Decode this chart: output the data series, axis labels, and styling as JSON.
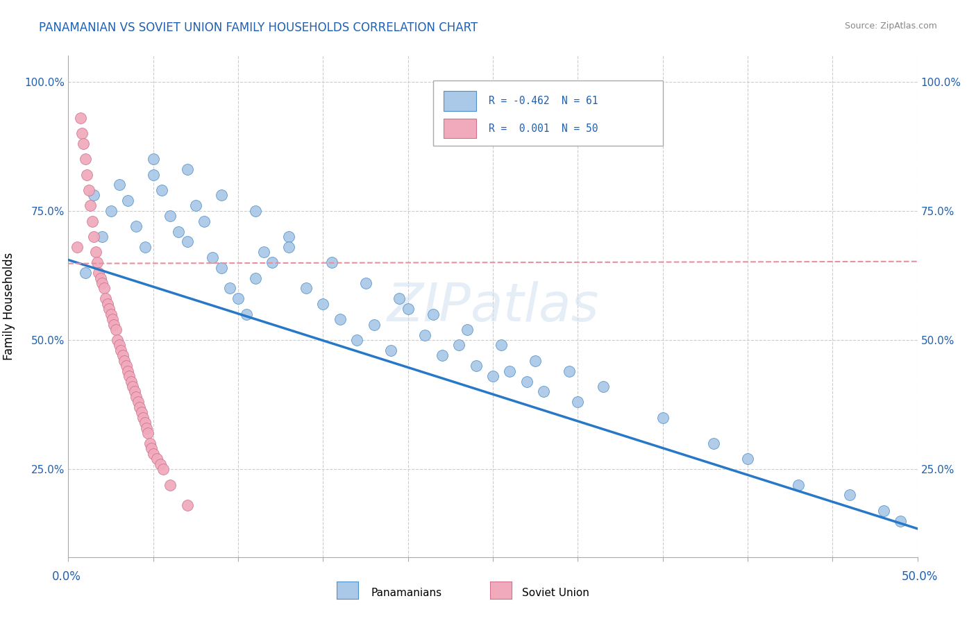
{
  "title": "PANAMANIAN VS SOVIET UNION FAMILY HOUSEHOLDS CORRELATION CHART",
  "source_text": "Source: ZipAtlas.com",
  "ylabel": "Family Households",
  "xlim": [
    0.0,
    0.5
  ],
  "ylim": [
    0.08,
    1.05
  ],
  "blue_R": -0.462,
  "blue_N": 61,
  "pink_R": 0.001,
  "pink_N": 50,
  "blue_color": "#aac8e8",
  "pink_color": "#f0aabb",
  "blue_edge_color": "#5090c8",
  "pink_edge_color": "#d07090",
  "blue_line_color": "#2878c8",
  "pink_line_color": "#e890a0",
  "background_color": "#ffffff",
  "grid_color": "#cccccc",
  "text_color": "#2060b0",
  "legend_label_blue": "Panamanians",
  "legend_label_pink": "Soviet Union",
  "yticks": [
    0.25,
    0.5,
    0.75,
    1.0
  ],
  "ytick_labels": [
    "25.0%",
    "50.0%",
    "75.0%",
    "100.0%"
  ],
  "blue_scatter_x": [
    0.01,
    0.02,
    0.015,
    0.025,
    0.03,
    0.035,
    0.04,
    0.045,
    0.05,
    0.055,
    0.06,
    0.065,
    0.07,
    0.075,
    0.08,
    0.085,
    0.09,
    0.095,
    0.1,
    0.105,
    0.11,
    0.115,
    0.12,
    0.13,
    0.14,
    0.15,
    0.16,
    0.17,
    0.18,
    0.19,
    0.2,
    0.21,
    0.22,
    0.23,
    0.24,
    0.25,
    0.26,
    0.27,
    0.28,
    0.3,
    0.05,
    0.07,
    0.09,
    0.11,
    0.13,
    0.155,
    0.175,
    0.195,
    0.215,
    0.235,
    0.255,
    0.275,
    0.295,
    0.315,
    0.35,
    0.38,
    0.4,
    0.43,
    0.46,
    0.48,
    0.49
  ],
  "blue_scatter_y": [
    0.63,
    0.7,
    0.78,
    0.75,
    0.8,
    0.77,
    0.72,
    0.68,
    0.82,
    0.79,
    0.74,
    0.71,
    0.69,
    0.76,
    0.73,
    0.66,
    0.64,
    0.6,
    0.58,
    0.55,
    0.62,
    0.67,
    0.65,
    0.7,
    0.6,
    0.57,
    0.54,
    0.5,
    0.53,
    0.48,
    0.56,
    0.51,
    0.47,
    0.49,
    0.45,
    0.43,
    0.44,
    0.42,
    0.4,
    0.38,
    0.85,
    0.83,
    0.78,
    0.75,
    0.68,
    0.65,
    0.61,
    0.58,
    0.55,
    0.52,
    0.49,
    0.46,
    0.44,
    0.41,
    0.35,
    0.3,
    0.27,
    0.22,
    0.2,
    0.17,
    0.15
  ],
  "pink_scatter_x": [
    0.005,
    0.007,
    0.008,
    0.009,
    0.01,
    0.011,
    0.012,
    0.013,
    0.014,
    0.015,
    0.016,
    0.017,
    0.018,
    0.019,
    0.02,
    0.021,
    0.022,
    0.023,
    0.024,
    0.025,
    0.026,
    0.027,
    0.028,
    0.029,
    0.03,
    0.031,
    0.032,
    0.033,
    0.034,
    0.035,
    0.036,
    0.037,
    0.038,
    0.039,
    0.04,
    0.041,
    0.042,
    0.043,
    0.044,
    0.045,
    0.046,
    0.047,
    0.048,
    0.049,
    0.05,
    0.052,
    0.054,
    0.056,
    0.06,
    0.07
  ],
  "pink_scatter_y": [
    0.68,
    0.93,
    0.9,
    0.88,
    0.85,
    0.82,
    0.79,
    0.76,
    0.73,
    0.7,
    0.67,
    0.65,
    0.63,
    0.62,
    0.61,
    0.6,
    0.58,
    0.57,
    0.56,
    0.55,
    0.54,
    0.53,
    0.52,
    0.5,
    0.49,
    0.48,
    0.47,
    0.46,
    0.45,
    0.44,
    0.43,
    0.42,
    0.41,
    0.4,
    0.39,
    0.38,
    0.37,
    0.36,
    0.35,
    0.34,
    0.33,
    0.32,
    0.3,
    0.29,
    0.28,
    0.27,
    0.26,
    0.25,
    0.22,
    0.18
  ],
  "blue_line_x": [
    0.0,
    0.5
  ],
  "blue_line_y": [
    0.655,
    0.135
  ],
  "pink_line_x": [
    0.0,
    0.5
  ],
  "pink_line_y": [
    0.648,
    0.652
  ],
  "watermark": "ZIPatlas",
  "title_fontsize": 12,
  "source_fontsize": 9,
  "tick_fontsize": 11
}
